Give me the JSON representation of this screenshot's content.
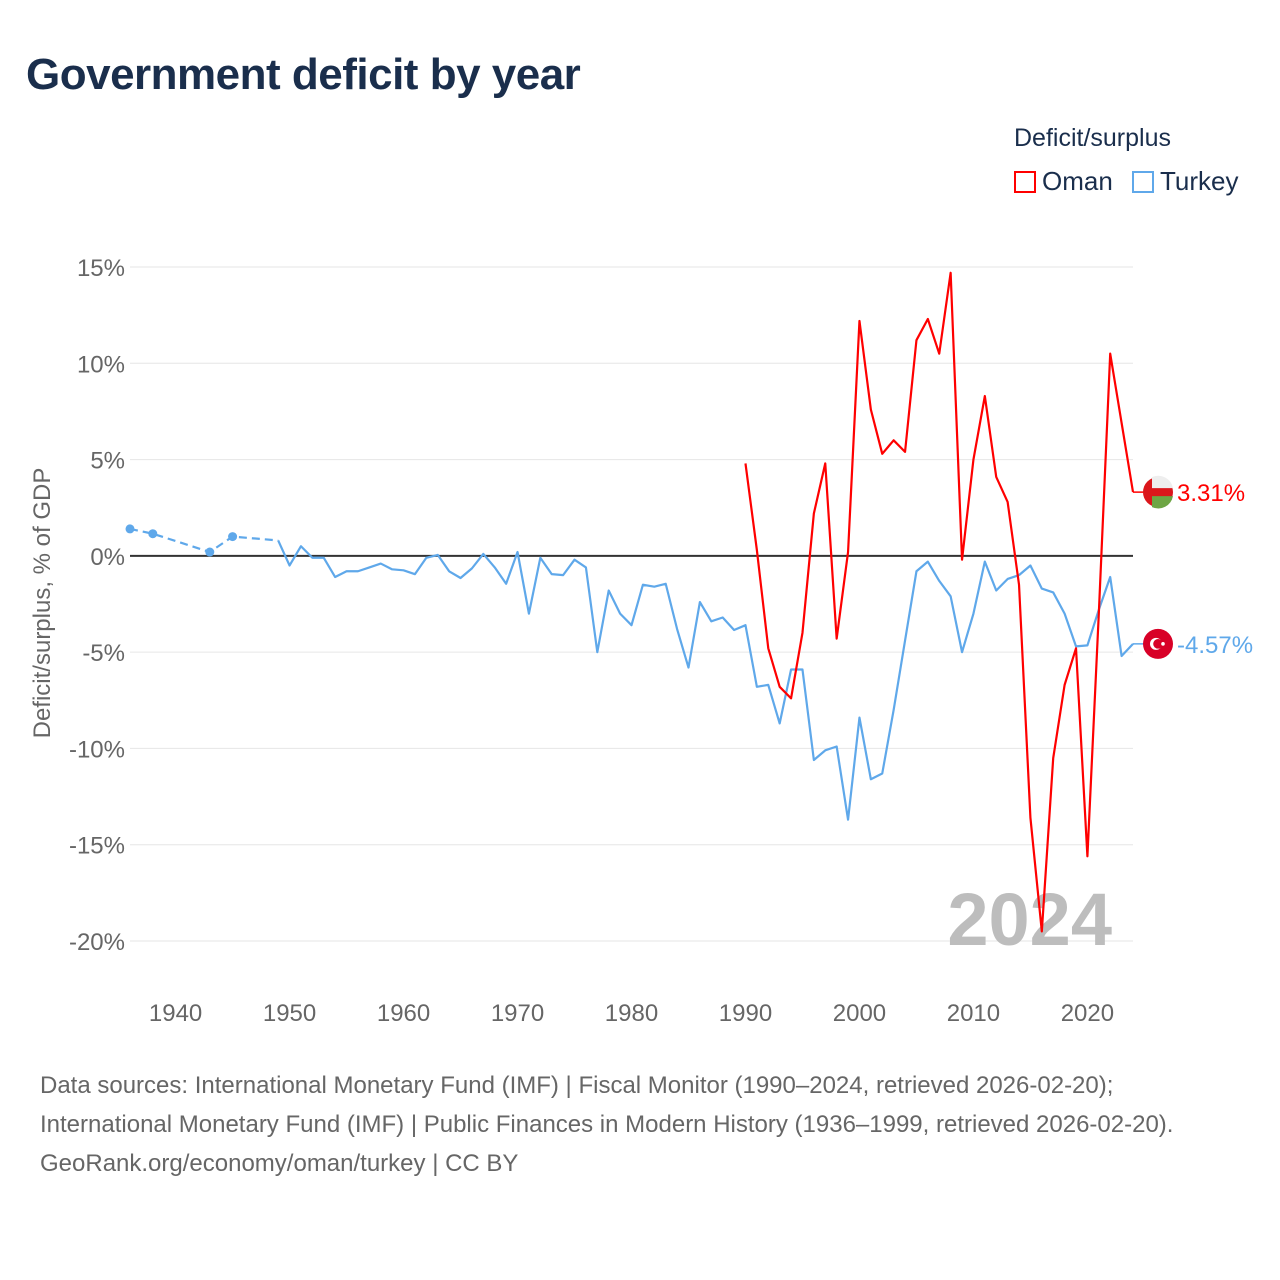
{
  "title": "Government deficit by year",
  "legend": {
    "title": "Deficit/surplus",
    "items": [
      {
        "label": "Oman",
        "color": "#ff0000"
      },
      {
        "label": "Turkey",
        "color": "#5fa8ea"
      }
    ]
  },
  "chart_data": {
    "type": "line",
    "title": "Government deficit by year",
    "ylabel": "Deficit/surplus, % of GDP",
    "xlabel": "",
    "xlim": [
      1936,
      2024
    ],
    "ylim": [
      -20,
      15
    ],
    "x_ticks": [
      "1940",
      "1950",
      "1960",
      "1970",
      "1980",
      "1990",
      "2000",
      "2010",
      "2020"
    ],
    "y_ticks": [
      "15%",
      "10%",
      "5%",
      "0%",
      "-5%",
      "-10%",
      "-15%",
      "-20%"
    ],
    "y_tick_values": [
      15,
      10,
      5,
      0,
      -5,
      -10,
      -15,
      -20
    ],
    "x_tick_values": [
      1940,
      1950,
      1960,
      1970,
      1980,
      1990,
      2000,
      2010,
      2020
    ],
    "year_watermark": "2024",
    "series": [
      {
        "name": "Oman",
        "color": "#ff0000",
        "end_label": "3.31%",
        "x": [
          1990,
          1991,
          1992,
          1993,
          1994,
          1995,
          1996,
          1997,
          1998,
          1999,
          2000,
          2001,
          2002,
          2003,
          2004,
          2005,
          2006,
          2007,
          2008,
          2009,
          2010,
          2011,
          2012,
          2013,
          2014,
          2015,
          2016,
          2017,
          2018,
          2019,
          2020,
          2021,
          2022,
          2023,
          2024
        ],
        "y": [
          4.8,
          0.3,
          -4.8,
          -6.8,
          -7.4,
          -4.0,
          2.2,
          4.8,
          -4.3,
          0.2,
          12.2,
          7.6,
          5.3,
          6.0,
          5.4,
          11.2,
          12.3,
          10.5,
          14.7,
          -0.2,
          5.0,
          8.3,
          4.1,
          2.8,
          -1.5,
          -13.6,
          -19.5,
          -10.5,
          -6.7,
          -4.8,
          -15.6,
          -3.0,
          10.5,
          6.9,
          3.31
        ]
      },
      {
        "name": "Turkey",
        "color": "#5fa8ea",
        "end_label": "-4.57%",
        "sparse_points": {
          "x": [
            1936,
            1938,
            1943,
            1945,
            1949
          ],
          "y": [
            1.4,
            1.15,
            0.2,
            1.0,
            0.8
          ]
        },
        "x": [
          1949,
          1950,
          1951,
          1952,
          1953,
          1954,
          1955,
          1956,
          1957,
          1958,
          1959,
          1960,
          1961,
          1962,
          1963,
          1964,
          1965,
          1966,
          1967,
          1968,
          1969,
          1970,
          1971,
          1972,
          1973,
          1974,
          1975,
          1976,
          1977,
          1978,
          1979,
          1980,
          1981,
          1982,
          1983,
          1984,
          1985,
          1986,
          1987,
          1988,
          1989,
          1990,
          1991,
          1992,
          1993,
          1994,
          1995,
          1996,
          1997,
          1998,
          1999,
          2000,
          2001,
          2002,
          2003,
          2004,
          2005,
          2006,
          2007,
          2008,
          2009,
          2010,
          2011,
          2012,
          2013,
          2014,
          2015,
          2016,
          2017,
          2018,
          2019,
          2020,
          2021,
          2022,
          2023,
          2024
        ],
        "y": [
          0.8,
          -0.5,
          0.5,
          -0.1,
          -0.1,
          -1.1,
          -0.8,
          -0.8,
          -0.6,
          -0.4,
          -0.7,
          -0.75,
          -0.95,
          -0.1,
          0.05,
          -0.8,
          -1.15,
          -0.65,
          0.1,
          -0.6,
          -1.45,
          0.2,
          -3.0,
          -0.1,
          -0.95,
          -1.0,
          -0.2,
          -0.6,
          -5.0,
          -1.8,
          -3.0,
          -3.6,
          -1.5,
          -1.6,
          -1.45,
          -3.8,
          -5.8,
          -2.4,
          -3.4,
          -3.2,
          -3.85,
          -3.6,
          -6.8,
          -6.7,
          -8.7,
          -5.9,
          -5.9,
          -10.6,
          -10.1,
          -9.9,
          -13.7,
          -8.4,
          -11.6,
          -11.3,
          -8.0,
          -4.4,
          -0.8,
          -0.3,
          -1.3,
          -2.1,
          -5.0,
          -3.0,
          -0.3,
          -1.8,
          -1.2,
          -1.0,
          -0.5,
          -1.7,
          -1.9,
          -3.0,
          -4.7,
          -4.65,
          -2.8,
          -1.1,
          -5.2,
          -4.57
        ]
      }
    ]
  },
  "footer": {
    "sources": "Data sources: International Monetary Fund (IMF) | Fiscal Monitor (1990–2024, retrieved 2026-02-20); International Monetary Fund (IMF) | Public Finances in Modern History (1936–1999, retrieved 2026-02-20).",
    "credit": "GeoRank.org/economy/oman/turkey | CC BY"
  }
}
